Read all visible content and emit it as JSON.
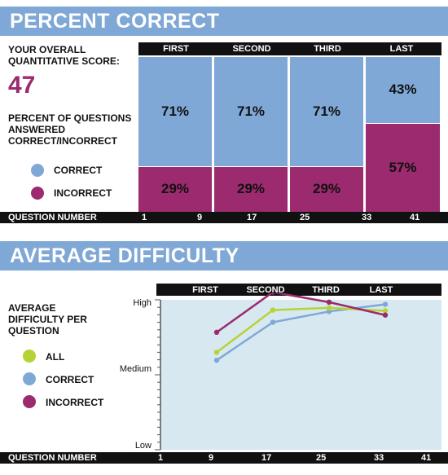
{
  "colors": {
    "banner": "#7fa8d6",
    "correct": "#7fa8d6",
    "incorrect": "#9b2a6e",
    "all": "#b5d334",
    "plot_bg": "#d7e8f0"
  },
  "percent": {
    "title": "PERCENT CORRECT",
    "score_label": "YOUR OVERALL QUANTITATIVE SCORE:",
    "score_value": "47",
    "questions_label": "PERCENT OF QUESTIONS ANSWERED CORRECT/INCORRECT",
    "legend": [
      {
        "label": "CORRECT",
        "color": "#7fa8d6",
        "icon": "circle"
      },
      {
        "label": "INCORRECT",
        "color": "#9b2a6e",
        "icon": "circle"
      }
    ],
    "section_headers": [
      "FIRST",
      "SECOND",
      "THIRD",
      "LAST"
    ],
    "question_row": {
      "label": "QUESTION NUMBER",
      "numbers": [
        "1",
        "9",
        "17",
        "25",
        "33",
        "41"
      ]
    }
  },
  "difficulty": {
    "title": "AVERAGE DIFFICULTY",
    "avg_label": "AVERAGE DIFFICULTY PER QUESTION",
    "legend": [
      {
        "label": "ALL",
        "color": "#b5d334",
        "icon": "circle"
      },
      {
        "label": "CORRECT",
        "color": "#7fa8d6",
        "icon": "circle"
      },
      {
        "label": "INCORRECT",
        "color": "#9b2a6e",
        "icon": "circle"
      }
    ],
    "section_headers": [
      "FIRST",
      "SECOND",
      "THIRD",
      "LAST"
    ],
    "y_labels": [
      "High",
      "Medium",
      "Low"
    ],
    "question_row": {
      "label": "QUESTION NUMBER",
      "numbers": [
        "1",
        "9",
        "17",
        "25",
        "33",
        "41"
      ]
    }
  },
  "chart_data": [
    {
      "type": "bar",
      "stacked": true,
      "categories": [
        "FIRST",
        "SECOND",
        "THIRD",
        "LAST"
      ],
      "series": [
        {
          "name": "CORRECT",
          "values": [
            71,
            71,
            71,
            43
          ],
          "labels": [
            "71%",
            "71%",
            "71%",
            "43%"
          ]
        },
        {
          "name": "INCORRECT",
          "values": [
            29,
            29,
            29,
            57
          ],
          "labels": [
            "29%",
            "29%",
            "29%",
            "57%"
          ]
        }
      ],
      "ylim": [
        0,
        100
      ]
    },
    {
      "type": "line",
      "x": [
        9,
        17,
        25,
        33
      ],
      "xlim": [
        1,
        41
      ],
      "y_scale": "0 = Low, 1 = Medium, 2 = High",
      "ylim": [
        0,
        2
      ],
      "series": [
        {
          "name": "ALL",
          "values": [
            1.29,
            1.88,
            1.91,
            1.87
          ]
        },
        {
          "name": "CORRECT",
          "values": [
            1.18,
            1.71,
            1.86,
            1.96
          ]
        },
        {
          "name": "INCORRECT",
          "values": [
            1.57,
            2.13,
            1.99,
            1.81
          ]
        }
      ],
      "grid": false
    }
  ]
}
